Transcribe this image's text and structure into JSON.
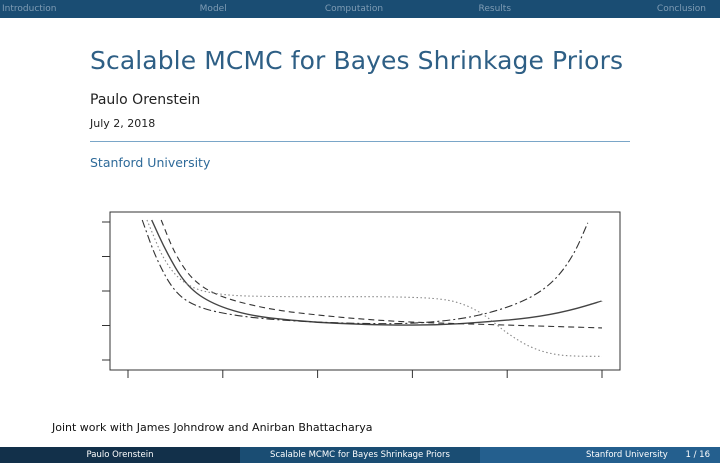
{
  "nav": {
    "items": [
      "Introduction",
      "Model",
      "Computation",
      "Results",
      "Conclusion"
    ]
  },
  "slide": {
    "title": "Scalable MCMC for Bayes Shrinkage Priors",
    "author": "Paulo Orenstein",
    "date": "July 2, 2018",
    "institute": "Stanford University",
    "joint_work": "Joint work with James Johndrow and Anirban Bhattacharya"
  },
  "footer": {
    "author": "Paulo Orenstein",
    "title": "Scalable MCMC for Bayes Shrinkage Priors",
    "institute": "Stanford University",
    "page": "1 / 16"
  },
  "colors": {
    "nav_bg": "#1a4d73",
    "title": "#2e5f85",
    "footer_dark": "#12304a",
    "footer_mid": "#1a4d73",
    "footer_light": "#245f8e"
  },
  "chart_data": {
    "type": "line",
    "title": "",
    "xlabel": "",
    "ylabel": "",
    "x_ticks": 6,
    "y_ticks": 5,
    "xlim": [
      0,
      1
    ],
    "ylim": [
      0,
      1
    ],
    "series": [
      {
        "style": "solid",
        "x": [
          0.05,
          0.08,
          0.12,
          0.17,
          0.25,
          0.35,
          0.45,
          0.55,
          0.65,
          0.75,
          0.85,
          0.93,
          1.0
        ],
        "y": [
          1.0,
          0.78,
          0.55,
          0.42,
          0.33,
          0.29,
          0.27,
          0.26,
          0.26,
          0.28,
          0.31,
          0.36,
          0.43
        ]
      },
      {
        "style": "dashed",
        "x": [
          0.07,
          0.1,
          0.14,
          0.2,
          0.3,
          0.4,
          0.5,
          0.6,
          0.7,
          0.8,
          0.9,
          1.0
        ],
        "y": [
          1.0,
          0.75,
          0.56,
          0.45,
          0.37,
          0.33,
          0.3,
          0.28,
          0.27,
          0.26,
          0.25,
          0.24
        ]
      },
      {
        "style": "dashdot",
        "x": [
          0.03,
          0.06,
          0.1,
          0.15,
          0.22,
          0.3,
          0.4,
          0.5,
          0.6,
          0.7,
          0.78,
          0.85,
          0.9,
          0.94,
          0.97
        ],
        "y": [
          1.0,
          0.72,
          0.48,
          0.38,
          0.33,
          0.3,
          0.28,
          0.27,
          0.27,
          0.3,
          0.36,
          0.45,
          0.57,
          0.75,
          0.98
        ]
      },
      {
        "style": "dotted",
        "x": [
          0.04,
          0.08,
          0.13,
          0.2,
          0.3,
          0.45,
          0.55,
          0.65,
          0.7,
          0.75,
          0.8,
          0.85,
          0.9,
          0.95,
          1.0
        ],
        "y": [
          1.0,
          0.68,
          0.52,
          0.47,
          0.46,
          0.46,
          0.46,
          0.45,
          0.42,
          0.34,
          0.2,
          0.1,
          0.05,
          0.04,
          0.04
        ]
      }
    ]
  }
}
